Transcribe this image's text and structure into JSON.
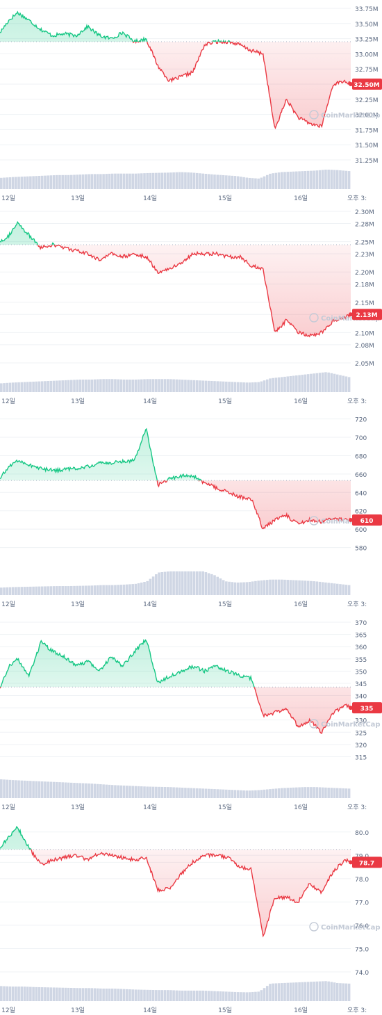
{
  "watermark": "CoinMarketCap",
  "colors": {
    "up": "#16c784",
    "down": "#ea3943",
    "axis_text": "#58667e",
    "grid": "#eff2f5",
    "volume": "#cfd6e4",
    "label_text": "#ffffff"
  },
  "x_labels": [
    "12일",
    "13일",
    "14일",
    "15일",
    "16일",
    "오후 3:"
  ],
  "chart_data": [
    {
      "type": "line",
      "y_ticks": [
        "33.75M",
        "33.50M",
        "33.25M",
        "33.00M",
        "32.75M",
        "32.50M",
        "32.25M",
        "32.00M",
        "31.75M",
        "31.50M",
        "31.25M"
      ],
      "ylim": [
        31.25,
        33.75
      ],
      "baseline": 33.2,
      "current_label": "32.50M",
      "current_value": 32.5,
      "x_anchors": [
        0,
        3,
        6,
        10,
        14,
        18,
        22,
        26,
        30,
        34,
        38,
        42,
        46,
        50,
        54,
        58,
        62,
        66,
        70,
        74,
        78,
        82,
        86,
        90,
        94,
        98,
        102,
        106,
        110,
        114,
        118,
        120
      ],
      "y_anchors": [
        33.35,
        33.55,
        33.68,
        33.55,
        33.4,
        33.3,
        33.33,
        33.3,
        33.45,
        33.3,
        33.25,
        33.35,
        33.2,
        33.25,
        32.8,
        32.55,
        32.62,
        32.7,
        33.15,
        33.2,
        33.2,
        33.15,
        33.05,
        33.0,
        31.75,
        32.25,
        31.95,
        31.85,
        31.8,
        32.5,
        32.55,
        32.5
      ],
      "volume": [
        0.45,
        0.48,
        0.5,
        0.52,
        0.54,
        0.56,
        0.56,
        0.58,
        0.6,
        0.6,
        0.62,
        0.62,
        0.62,
        0.64,
        0.65,
        0.66,
        0.68,
        0.66,
        0.62,
        0.58,
        0.55,
        0.52,
        0.45,
        0.42,
        0.62,
        0.68,
        0.7,
        0.72,
        0.74,
        0.78,
        0.76,
        0.72
      ]
    },
    {
      "type": "line",
      "y_ticks": [
        "2.30M",
        "2.28M",
        "2.25M",
        "2.23M",
        "2.20M",
        "2.18M",
        "2.15M",
        "2.13M",
        "2.10M",
        "2.08M",
        "2.05M"
      ],
      "ylim": [
        2.05,
        2.3
      ],
      "baseline": 2.245,
      "current_label": "2.13M",
      "current_value": 2.13,
      "x_anchors": [
        0,
        3,
        6,
        10,
        14,
        18,
        22,
        26,
        30,
        34,
        38,
        42,
        46,
        50,
        54,
        58,
        62,
        66,
        70,
        74,
        78,
        82,
        86,
        90,
        94,
        98,
        102,
        106,
        110,
        114,
        118,
        120
      ],
      "y_anchors": [
        2.25,
        2.26,
        2.28,
        2.26,
        2.24,
        2.245,
        2.24,
        2.235,
        2.23,
        2.22,
        2.23,
        2.225,
        2.23,
        2.225,
        2.2,
        2.205,
        2.215,
        2.23,
        2.23,
        2.23,
        2.225,
        2.225,
        2.21,
        2.205,
        2.1,
        2.12,
        2.1,
        2.095,
        2.1,
        2.12,
        2.125,
        2.13
      ],
      "volume": [
        0.35,
        0.38,
        0.4,
        0.42,
        0.44,
        0.46,
        0.48,
        0.5,
        0.5,
        0.52,
        0.52,
        0.5,
        0.5,
        0.52,
        0.52,
        0.52,
        0.5,
        0.48,
        0.46,
        0.44,
        0.42,
        0.4,
        0.38,
        0.4,
        0.55,
        0.6,
        0.65,
        0.7,
        0.75,
        0.8,
        0.7,
        0.6
      ]
    },
    {
      "type": "line",
      "y_ticks": [
        "720",
        "700",
        "680",
        "660",
        "640",
        "620",
        "600",
        "580"
      ],
      "ylim": [
        560,
        725
      ],
      "baseline": 653,
      "current_label": "610",
      "current_value": 610,
      "x_anchors": [
        0,
        3,
        6,
        10,
        14,
        18,
        22,
        26,
        30,
        34,
        38,
        42,
        46,
        50,
        54,
        58,
        62,
        66,
        70,
        74,
        78,
        82,
        86,
        90,
        94,
        98,
        102,
        106,
        110,
        114,
        118,
        120
      ],
      "y_anchors": [
        655,
        668,
        675,
        670,
        666,
        664,
        665,
        666,
        668,
        672,
        672,
        674,
        675,
        710,
        648,
        655,
        658,
        658,
        650,
        645,
        640,
        635,
        633,
        600,
        610,
        615,
        605,
        610,
        608,
        612,
        610,
        610
      ],
      "volume": [
        0.3,
        0.32,
        0.33,
        0.34,
        0.35,
        0.36,
        0.36,
        0.37,
        0.38,
        0.4,
        0.4,
        0.42,
        0.45,
        0.55,
        0.9,
        0.95,
        0.95,
        0.95,
        0.95,
        0.8,
        0.55,
        0.5,
        0.52,
        0.58,
        0.62,
        0.62,
        0.6,
        0.58,
        0.55,
        0.5,
        0.45,
        0.4
      ]
    },
    {
      "type": "line",
      "y_ticks": [
        "370",
        "365",
        "360",
        "355",
        "350",
        "345",
        "340",
        "335",
        "330",
        "325",
        "320",
        "315"
      ],
      "ylim": [
        310,
        372
      ],
      "baseline": 343.5,
      "current_label": "335",
      "current_value": 335,
      "x_anchors": [
        0,
        3,
        6,
        10,
        14,
        18,
        22,
        26,
        30,
        34,
        38,
        42,
        46,
        50,
        54,
        58,
        62,
        66,
        70,
        74,
        78,
        82,
        86,
        90,
        94,
        98,
        102,
        106,
        110,
        114,
        118,
        120
      ],
      "y_anchors": [
        343,
        352,
        355,
        348,
        362,
        358,
        356,
        352,
        354,
        350,
        356,
        352,
        358,
        363,
        345,
        348,
        350,
        352,
        350,
        352,
        350,
        348,
        347,
        332,
        333,
        335,
        327,
        330,
        325,
        333,
        336,
        335
      ],
      "volume": [
        0.75,
        0.72,
        0.7,
        0.68,
        0.66,
        0.64,
        0.62,
        0.6,
        0.58,
        0.55,
        0.52,
        0.5,
        0.48,
        0.46,
        0.45,
        0.44,
        0.42,
        0.4,
        0.38,
        0.36,
        0.34,
        0.32,
        0.3,
        0.32,
        0.36,
        0.4,
        0.42,
        0.44,
        0.44,
        0.42,
        0.4,
        0.38
      ]
    },
    {
      "type": "line",
      "y_ticks": [
        "80.0",
        "79.0",
        "78.7",
        "78.0",
        "77.0",
        "76.0",
        "75.0",
        "74.0"
      ],
      "ylim": [
        74.0,
        80.5
      ],
      "baseline": 79.25,
      "current_label": "78.7",
      "current_value": 78.7,
      "x_anchors": [
        0,
        3,
        6,
        10,
        14,
        18,
        22,
        26,
        30,
        34,
        38,
        42,
        46,
        50,
        54,
        58,
        62,
        66,
        70,
        74,
        78,
        82,
        86,
        90,
        94,
        98,
        102,
        106,
        110,
        114,
        118,
        120
      ],
      "y_anchors": [
        79.3,
        79.8,
        80.2,
        79.3,
        78.6,
        78.8,
        78.9,
        79.0,
        78.8,
        79.1,
        79.0,
        78.9,
        78.8,
        78.9,
        77.5,
        77.6,
        78.2,
        78.7,
        79.0,
        79.0,
        78.9,
        78.5,
        78.4,
        75.5,
        77.2,
        77.2,
        77.0,
        77.8,
        77.4,
        78.3,
        78.8,
        78.7
      ],
      "volume": [
        0.6,
        0.58,
        0.58,
        0.56,
        0.55,
        0.54,
        0.53,
        0.52,
        0.52,
        0.5,
        0.5,
        0.48,
        0.46,
        0.45,
        0.44,
        0.44,
        0.42,
        0.42,
        0.42,
        0.4,
        0.38,
        0.36,
        0.35,
        0.38,
        0.7,
        0.72,
        0.74,
        0.76,
        0.78,
        0.8,
        0.72,
        0.7
      ]
    }
  ]
}
